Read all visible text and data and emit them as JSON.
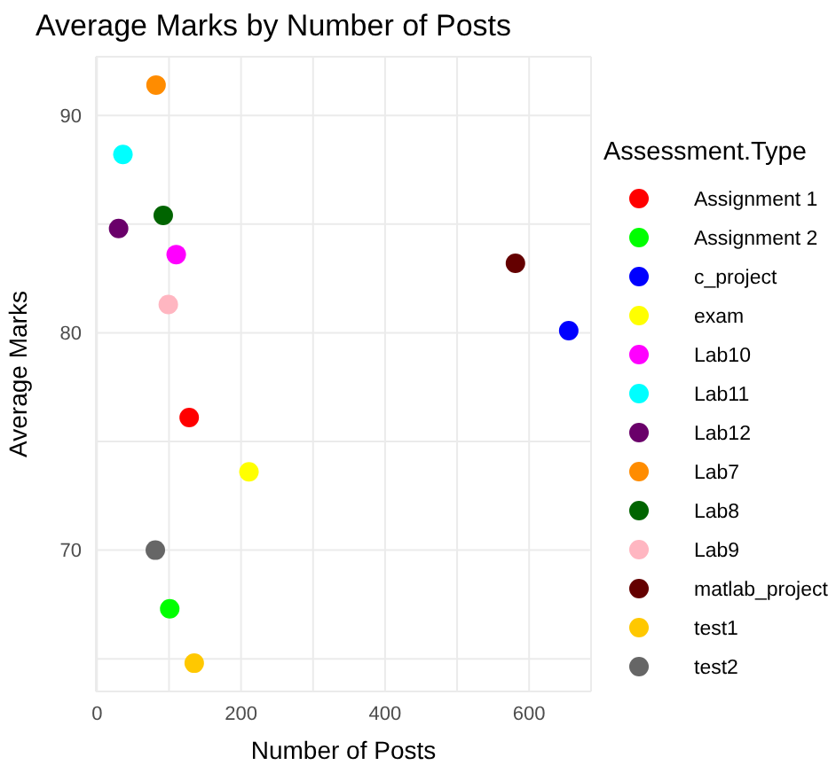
{
  "chart_data": {
    "type": "scatter",
    "title": "Average Marks by Number of Posts",
    "xlabel": "Number of Posts",
    "ylabel": "Average Marks",
    "legend_title": "Assessment.Type",
    "legend": "right",
    "grid": true,
    "marker": "circle",
    "xlim": [
      -1.6,
      686
    ],
    "xticks": [
      0,
      {
        "value": 100,
        "label": null
      },
      200,
      {
        "value": 300,
        "label": null
      },
      400,
      {
        "value": 500,
        "label": null
      },
      600
    ],
    "ylim": [
      63.5,
      92.7
    ],
    "yticks": [
      {
        "value": 65,
        "label": null
      },
      70,
      {
        "value": 75,
        "label": null
      },
      80,
      {
        "value": 85,
        "label": null
      },
      90
    ],
    "series": [
      {
        "name": "Assignment 1",
        "color": "#ff0000",
        "x": [
          128
        ],
        "values": [
          76.1
        ]
      },
      {
        "name": "Assignment 2",
        "color": "#00ff00",
        "x": [
          101
        ],
        "values": [
          67.3
        ]
      },
      {
        "name": "c_project",
        "color": "#0000ff",
        "x": [
          655
        ],
        "values": [
          80.1
        ]
      },
      {
        "name": "exam",
        "color": "#ffff00",
        "x": [
          211
        ],
        "values": [
          73.6
        ]
      },
      {
        "name": "Lab10",
        "color": "#ff00ff",
        "x": [
          110
        ],
        "values": [
          83.6
        ]
      },
      {
        "name": "Lab11",
        "color": "#00ffff",
        "x": [
          36
        ],
        "values": [
          88.2
        ]
      },
      {
        "name": "Lab12",
        "color": "#6a006a",
        "x": [
          30
        ],
        "values": [
          84.8
        ]
      },
      {
        "name": "Lab7",
        "color": "#ff8c00",
        "x": [
          82
        ],
        "values": [
          91.4
        ]
      },
      {
        "name": "Lab8",
        "color": "#006400",
        "x": [
          92
        ],
        "values": [
          85.4
        ]
      },
      {
        "name": "Lab9",
        "color": "#ffb6c1",
        "x": [
          99
        ],
        "values": [
          81.3
        ]
      },
      {
        "name": "matlab_project",
        "color": "#640000",
        "x": [
          581
        ],
        "values": [
          83.2
        ]
      },
      {
        "name": "test1",
        "color": "#ffc800",
        "x": [
          135
        ],
        "values": [
          64.8
        ]
      },
      {
        "name": "test2",
        "color": "#666666",
        "x": [
          81
        ],
        "values": [
          70.0
        ]
      }
    ]
  }
}
